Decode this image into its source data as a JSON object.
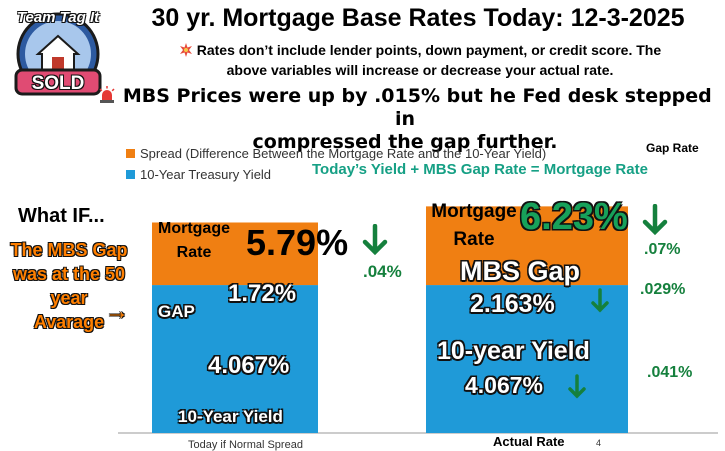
{
  "title": "30 yr. Mortgage Base Rates Today: 12-3-2025",
  "logo": {
    "top_text": "Team Tag It",
    "badge_text": "SOLD"
  },
  "note": {
    "icon": "burst-icon",
    "line1": "Rates don’t include lender points, down payment, or credit score. The",
    "line2": "above variables will increase or decrease your actual rate."
  },
  "alert": {
    "icon": "siren-icon",
    "line1": "MBS Prices were up by .015% but he Fed desk stepped in",
    "line2": "compressed the gap further."
  },
  "legend": [
    {
      "label": "Spread (Difference Between the Mortgage Rate and the 10-Year Yield)",
      "color": "#f07f12"
    },
    {
      "label": "10-Year Treasury Yield",
      "color": "#1f9ad8"
    }
  ],
  "gap_rate_header": "Gap Rate",
  "formula": "Today’s  Yield +  MBS Gap Rate = Mortgage Rate",
  "what_if": {
    "heading": "What IF...",
    "lines": [
      "The MBS Gap",
      "was at the 50",
      "year",
      "Avarage"
    ],
    "arrow": "→"
  },
  "chart_data": {
    "type": "bar",
    "stacked": true,
    "categories": [
      "Today if Normal Spread",
      "Actual Rate"
    ],
    "series": [
      {
        "name": "10-Year Treasury Yield",
        "values": [
          4.067,
          4.067
        ],
        "color": "#1f9ad8"
      },
      {
        "name": "Spread (Difference Between the Mortgage Rate and the 10-Year Yield)",
        "values": [
          1.72,
          2.163
        ],
        "color": "#f07f12"
      }
    ],
    "totals": [
      5.79,
      6.23
    ],
    "ylim": [
      0,
      6.9
    ]
  },
  "left_bar": {
    "mortgage_label_1": "Mortgage",
    "mortgage_label_2": "Rate",
    "total_rate": "5.79%",
    "total_change": ".04%",
    "gap_label": "GAP",
    "gap_value": "1.72%",
    "yield_value": "4.067%",
    "yield_label": "10-Year Yield"
  },
  "right_bar": {
    "mortgage_label_1": "Mortgage",
    "mortgage_label_2": "Rate",
    "total_rate": "6.23%",
    "total_change": ".07%",
    "gap_label": "MBS Gap",
    "gap_value": "2.163%",
    "gap_change": ".029%",
    "yield_label": "10-year Yield",
    "yield_value": "4.067%",
    "yield_change": ".041%"
  },
  "x_labels": {
    "left": "Today if Normal Spread",
    "right": "Actual Rate",
    "right_mark": "4"
  }
}
